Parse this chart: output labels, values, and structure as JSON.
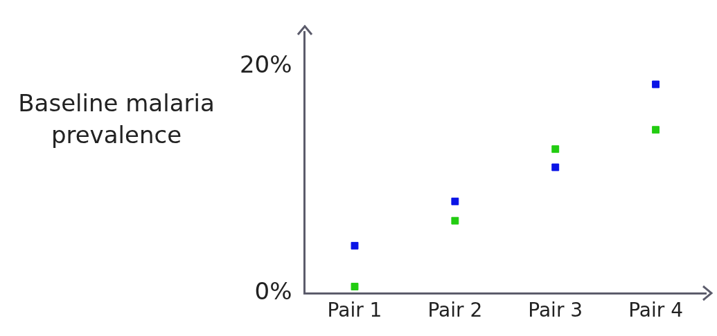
{
  "chart_data": {
    "type": "scatter",
    "ylabel": "Baseline malaria prevalence",
    "categories": [
      "Pair 1",
      "Pair 2",
      "Pair 3",
      "Pair 4"
    ],
    "series": [
      {
        "color": "#0a14e6",
        "values": [
          4.2,
          8.1,
          11.1,
          18.4
        ]
      },
      {
        "color": "#22cc11",
        "values": [
          0.6,
          6.4,
          12.7,
          14.4
        ]
      }
    ],
    "ylim": [
      0,
      23
    ],
    "yticks": [
      {
        "value": 0,
        "label": "0%"
      },
      {
        "value": 20,
        "label": "20%"
      }
    ],
    "grid": false,
    "legend": false,
    "marker": "square"
  }
}
